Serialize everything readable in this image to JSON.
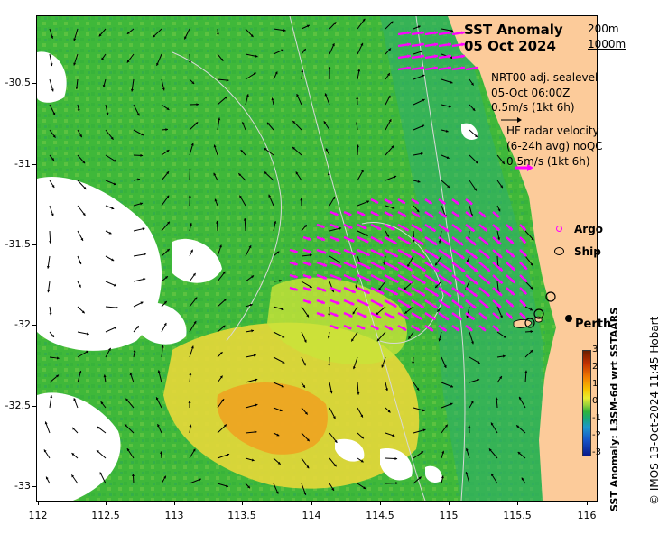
{
  "title": {
    "line1": "SST Anomaly",
    "line2": "05 Oct 2024"
  },
  "depth_contours": {
    "a": "200m",
    "b": "1000m"
  },
  "current_legend": {
    "line1": "NRT00 adj. sealevel",
    "line2": "05-Oct 06:00Z",
    "line3": "0.5m/s (1kt 6h)"
  },
  "radar_legend": {
    "line1": "HF radar velocity",
    "line2": "(6-24h avg) noQC",
    "line3": "0.5m/s (1kt 6h)"
  },
  "markers_legend": {
    "argo": "Argo",
    "ship": "Ship"
  },
  "place_label": "Perth",
  "colorbar": {
    "title": "SST Anomaly: L3SM-6d wrt SSTAARS",
    "ticks": [
      "3",
      "2",
      "1",
      "0",
      "-1",
      "-2",
      "-3"
    ]
  },
  "copyright": "© IMOS 13-Oct-2024 11:45 Hobart",
  "axes": {
    "x_ticks": [
      "112",
      "112.5",
      "113",
      "113.5",
      "114",
      "114.5",
      "115",
      "115.5",
      "116"
    ],
    "y_ticks": [
      "-30.5",
      "-31",
      "-31.5",
      "-32",
      "-32.5",
      "-33"
    ],
    "xlim": [
      112,
      116.1
    ],
    "ylim": [
      -33.1,
      -30.1
    ]
  },
  "colors": {
    "land": "#fccb9a",
    "radar_arrow": "#ff00ff",
    "argo": "#ff00ff",
    "ship": "#000000",
    "anom_warm": "#f0a020",
    "anom_neutral": "#4fc42f",
    "anom_cool": "#2bb27a"
  }
}
